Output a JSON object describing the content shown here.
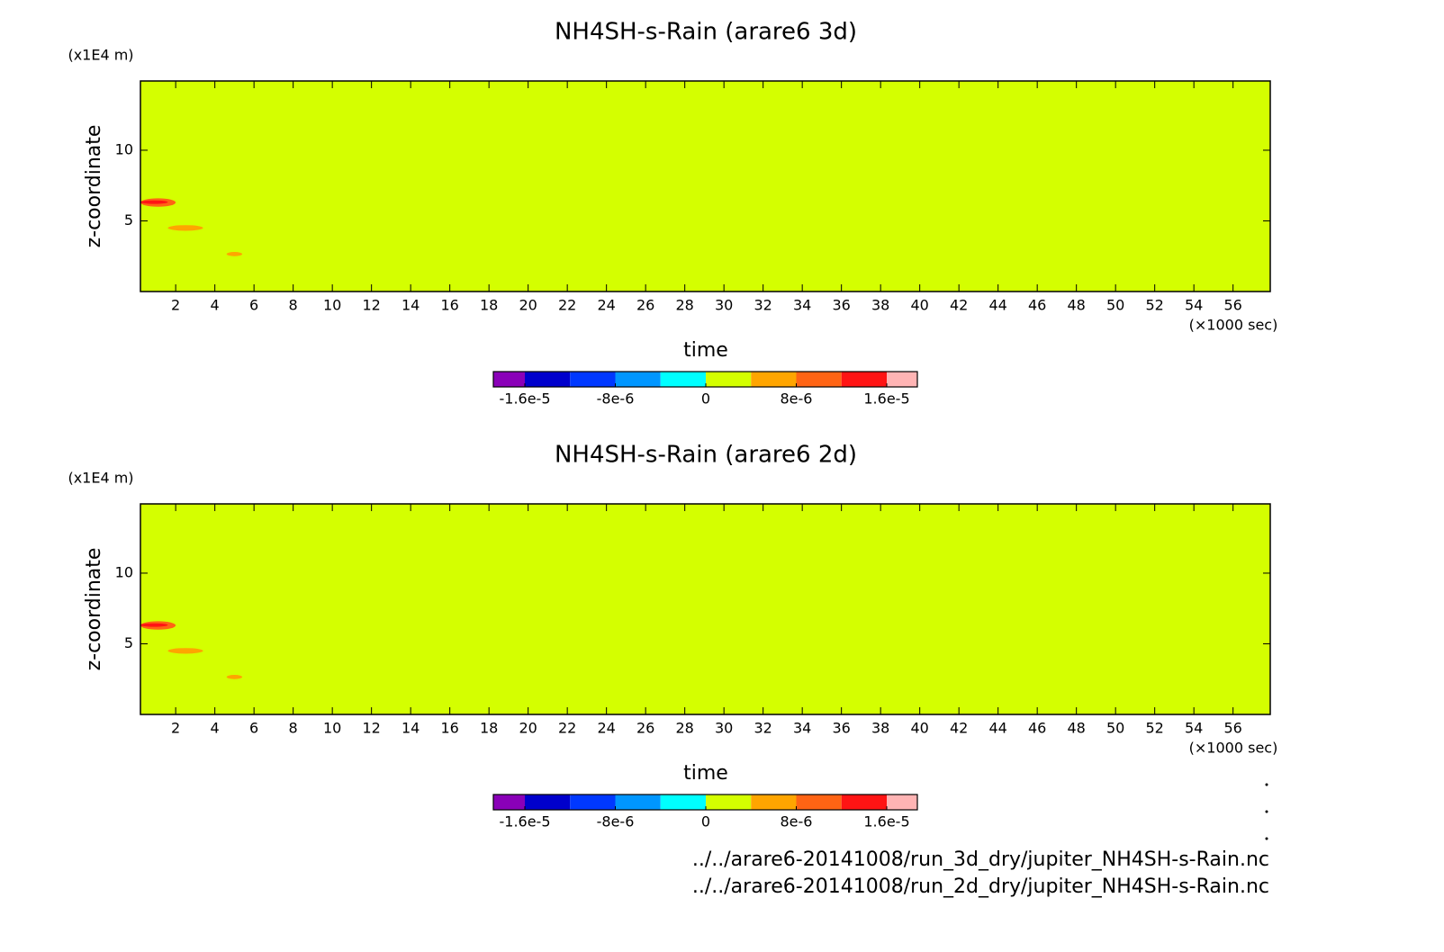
{
  "chart_data": [
    {
      "type": "contour",
      "title": "NH4SH-s-Rain (arare6 3d)",
      "xlabel": "time",
      "xunit": "(×1000 sec)",
      "ylabel": "z-coordinate",
      "yunit": "(x1E4 m)",
      "xlim": [
        0.2,
        57.9
      ],
      "ylim": [
        0,
        14.9
      ],
      "xticks": [
        2,
        4,
        6,
        8,
        10,
        12,
        14,
        16,
        18,
        20,
        22,
        24,
        26,
        28,
        30,
        32,
        34,
        36,
        38,
        40,
        42,
        44,
        46,
        48,
        50,
        52,
        54,
        56
      ],
      "yticks": [
        5,
        10
      ],
      "levels": [
        -1.6e-05,
        -1.2e-05,
        -8e-06,
        -4e-06,
        0,
        4e-06,
        8e-06,
        1.2e-05,
        1.6e-05
      ],
      "colors": [
        "#8a00b8",
        "#0000cc",
        "#0038ff",
        "#0096ff",
        "#00ffff",
        "#d4ff00",
        "#ffa500",
        "#ff6414",
        "#ff1414",
        "#ffb4b4"
      ],
      "colorbar_ticks": [
        {
          "value": -1.6e-05,
          "label": "-1.6e-5"
        },
        {
          "value": -8e-06,
          "label": "-8e-6"
        },
        0,
        {
          "value": 8e-06,
          "label": "8e-6"
        },
        {
          "value": 1.6e-05,
          "label": "1.6e-5"
        }
      ],
      "field": 2e-06,
      "patches": [
        {
          "x": [
            0.2,
            2.0
          ],
          "y": [
            6.0,
            6.6
          ],
          "value": 1e-05
        },
        {
          "x": [
            0.2,
            1.6
          ],
          "y": [
            6.2,
            6.45
          ],
          "value": 1.4e-05
        },
        {
          "x": [
            1.6,
            3.4
          ],
          "y": [
            4.3,
            4.7
          ],
          "value": 6e-06
        },
        {
          "x": [
            4.6,
            5.4
          ],
          "y": [
            2.5,
            2.8
          ],
          "value": 6e-06
        }
      ]
    },
    {
      "type": "contour",
      "title": "NH4SH-s-Rain (arare6 2d)",
      "xlabel": "time",
      "xunit": "(×1000 sec)",
      "ylabel": "z-coordinate",
      "yunit": "(x1E4 m)",
      "xlim": [
        0.2,
        57.9
      ],
      "ylim": [
        0,
        14.9
      ],
      "xticks": [
        2,
        4,
        6,
        8,
        10,
        12,
        14,
        16,
        18,
        20,
        22,
        24,
        26,
        28,
        30,
        32,
        34,
        36,
        38,
        40,
        42,
        44,
        46,
        48,
        50,
        52,
        54,
        56
      ],
      "yticks": [
        5,
        10
      ],
      "levels": [
        -1.6e-05,
        -1.2e-05,
        -8e-06,
        -4e-06,
        0,
        4e-06,
        8e-06,
        1.2e-05,
        1.6e-05
      ],
      "colors": [
        "#8a00b8",
        "#0000cc",
        "#0038ff",
        "#0096ff",
        "#00ffff",
        "#d4ff00",
        "#ffa500",
        "#ff6414",
        "#ff1414",
        "#ffb4b4"
      ],
      "colorbar_ticks": [
        {
          "value": -1.6e-05,
          "label": "-1.6e-5"
        },
        {
          "value": -8e-06,
          "label": "-8e-6"
        },
        0,
        {
          "value": 8e-06,
          "label": "8e-6"
        },
        {
          "value": 1.6e-05,
          "label": "1.6e-5"
        }
      ],
      "field": 2e-06,
      "patches": [
        {
          "x": [
            0.2,
            2.0
          ],
          "y": [
            6.0,
            6.6
          ],
          "value": 1e-05
        },
        {
          "x": [
            0.2,
            1.6
          ],
          "y": [
            6.2,
            6.45
          ],
          "value": 1.4e-05
        },
        {
          "x": [
            1.6,
            3.4
          ],
          "y": [
            4.3,
            4.7
          ],
          "value": 6e-06
        },
        {
          "x": [
            4.6,
            5.4
          ],
          "y": [
            2.5,
            2.8
          ],
          "value": 6e-06
        }
      ]
    }
  ],
  "files": [
    "../../arare6-20141008/run_3d_dry/jupiter_NH4SH-s-Rain.nc",
    "../../arare6-20141008/run_2d_dry/jupiter_NH4SH-s-Rain.nc"
  ]
}
